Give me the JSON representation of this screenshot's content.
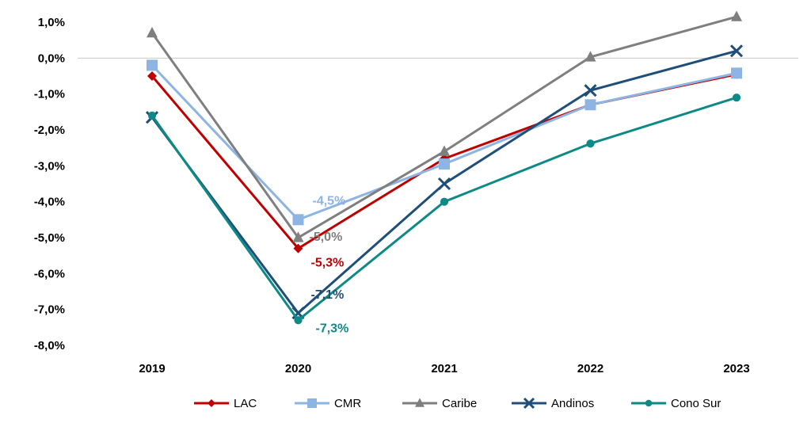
{
  "chart_data": {
    "type": "line",
    "categories": [
      "2019",
      "2020",
      "2021",
      "2022",
      "2023"
    ],
    "y_tick_labels": [
      "1,0%",
      "0,0%",
      "-1,0%",
      "-2,0%",
      "-3,0%",
      "-4,0%",
      "-5,0%",
      "-6,0%",
      "-7,0%",
      "-8,0%"
    ],
    "y_ticks": [
      1,
      0,
      -1,
      -2,
      -3,
      -4,
      -5,
      -6,
      -7,
      -8
    ],
    "ylim": [
      -8,
      1.2
    ],
    "zero_line": true,
    "legend_position": "bottom",
    "series": [
      {
        "name": "LAC",
        "values": [
          -0.5,
          -5.3,
          -2.8,
          -1.3,
          -0.45
        ],
        "color": "#c00000",
        "marker": "diamond",
        "width": 3
      },
      {
        "name": "CMR",
        "values": [
          -0.2,
          -4.5,
          -2.95,
          -1.3,
          -0.42
        ],
        "color": "#8db4e2",
        "marker": "square",
        "width": 3
      },
      {
        "name": "Caribe",
        "values": [
          0.7,
          -5.0,
          -2.6,
          0.03,
          1.15
        ],
        "color": "#7f7f7f",
        "marker": "triangle",
        "width": 3
      },
      {
        "name": "Andinos",
        "values": [
          -1.65,
          -7.1,
          -3.5,
          -0.9,
          0.2
        ],
        "color": "#1f4e79",
        "marker": "x",
        "width": 3
      },
      {
        "name": "Cono Sur",
        "values": [
          -1.6,
          -7.3,
          -4.0,
          -2.38,
          -1.1
        ],
        "color": "#0e8a86",
        "marker": "circle",
        "width": 3
      }
    ],
    "data_labels": [
      {
        "series": "CMR",
        "category": "2020",
        "text": "-4,5%",
        "color": "#8db4e2"
      },
      {
        "series": "Caribe",
        "category": "2020",
        "text": "-5,0%",
        "color": "#7f7f7f"
      },
      {
        "series": "LAC",
        "category": "2020",
        "text": "-5,3%",
        "color": "#c00000"
      },
      {
        "series": "Andinos",
        "category": "2020",
        "text": "-7,1%",
        "color": "#1f4e79"
      },
      {
        "series": "Cono Sur",
        "category": "2020",
        "text": "-7,3%",
        "color": "#0e8a86"
      }
    ]
  }
}
